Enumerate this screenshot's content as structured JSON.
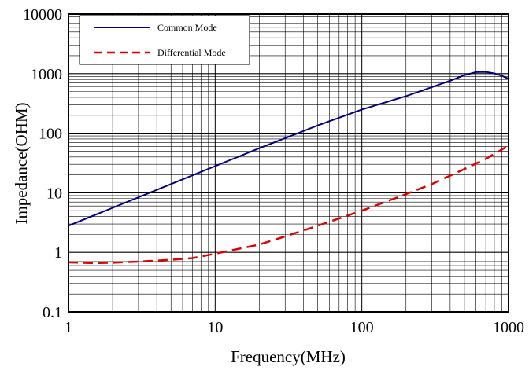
{
  "chart_data": {
    "type": "line",
    "title": "",
    "xlabel": "Frequency(MHz)",
    "ylabel": "Impedance(OHM)",
    "x_scale": "log",
    "y_scale": "log",
    "xlim": [
      1,
      1000
    ],
    "ylim": [
      0.1,
      10000
    ],
    "x_ticks": [
      1,
      10,
      100,
      1000
    ],
    "x_tick_labels": [
      "1",
      "10",
      "100",
      "1000"
    ],
    "y_ticks": [
      0.1,
      1,
      10,
      100,
      1000,
      10000
    ],
    "y_tick_labels": [
      "0.1",
      "1",
      "10",
      "100",
      "1000",
      "10000"
    ],
    "grid": true,
    "legend_position": "top-left",
    "series": [
      {
        "name": "Common Mode",
        "color": "#000080",
        "line_style": "solid",
        "x": [
          1,
          2,
          5,
          10,
          20,
          50,
          100,
          200,
          400,
          500,
          600,
          700,
          800,
          900,
          1000
        ],
        "y": [
          2.8,
          5.6,
          14,
          28,
          56,
          135,
          250,
          420,
          760,
          940,
          1060,
          1070,
          1010,
          920,
          820
        ]
      },
      {
        "name": "Differential Mode",
        "color": "#e00000",
        "line_style": "dashed",
        "x": [
          1,
          1.5,
          2,
          3,
          5,
          7,
          10,
          20,
          30,
          50,
          100,
          200,
          300,
          500,
          700,
          1000
        ],
        "y": [
          0.68,
          0.66,
          0.67,
          0.7,
          0.75,
          0.8,
          0.95,
          1.35,
          1.85,
          2.8,
          5,
          9.5,
          14,
          25,
          37,
          62
        ]
      }
    ]
  }
}
